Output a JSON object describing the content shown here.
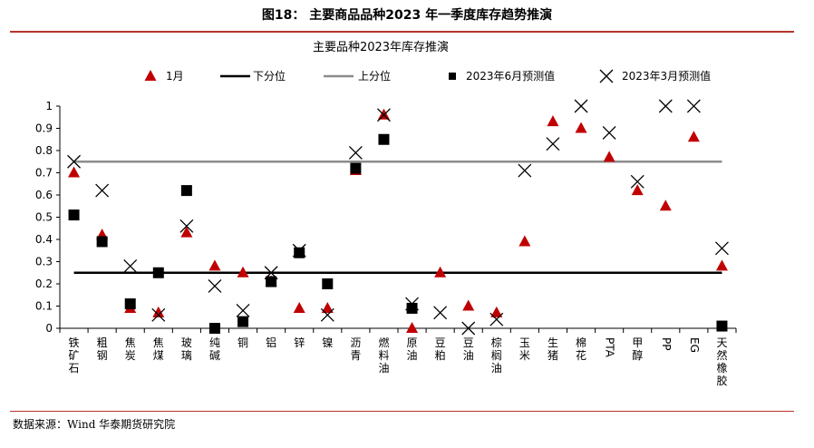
{
  "figure": {
    "title": "图18： 主要商品品种2023 年一季度库存趋势推演",
    "source": "数据来源：Wind 华泰期货研究院"
  },
  "colors": {
    "jan": "#c00000",
    "lower": "#000000",
    "upper": "#8c8c8c",
    "june": "#000000",
    "march": "#000000",
    "rule": "#b5352b"
  },
  "chart_data": {
    "type": "scatter",
    "title": "主要品种2023年库存推演",
    "categories": [
      "铁矿石",
      "粗钢",
      "焦炭",
      "焦煤",
      "玻璃",
      "纯碱",
      "铜",
      "铝",
      "锌",
      "镍",
      "沥青",
      "燃料油",
      "原油",
      "豆粕",
      "豆油",
      "棕榈油",
      "玉米",
      "生猪",
      "棉花",
      "PTA",
      "甲醇",
      "PP",
      "EG",
      "天然橡胶"
    ],
    "ylim": [
      0,
      1
    ],
    "yticks": [
      "0",
      "0.1",
      "0.2",
      "0.3",
      "0.4",
      "0.5",
      "0.6",
      "0.7",
      "0.8",
      "0.9",
      "1"
    ],
    "legend": [
      "1月",
      "下分位",
      "上分位",
      "2023年6月预测值",
      "2023年3月预测值"
    ],
    "legend_position": "top",
    "series": [
      {
        "name": "1月",
        "marker": "triangle",
        "values": [
          0.7,
          0.42,
          0.09,
          0.07,
          0.43,
          0.28,
          0.25,
          0.21,
          0.09,
          0.09,
          0.71,
          0.96,
          0.0,
          0.25,
          0.1,
          0.07,
          0.39,
          0.93,
          0.9,
          0.77,
          0.62,
          0.55,
          0.86,
          0.28
        ]
      },
      {
        "name": "2023年6月预测值",
        "marker": "square",
        "values": [
          0.51,
          0.39,
          0.11,
          0.25,
          0.62,
          0.0,
          0.03,
          0.21,
          0.34,
          0.2,
          0.72,
          0.85,
          0.09,
          null,
          null,
          null,
          null,
          null,
          null,
          null,
          null,
          null,
          null,
          0.01
        ]
      },
      {
        "name": "2023年3月预测值",
        "marker": "x",
        "values": [
          0.75,
          0.62,
          0.28,
          0.06,
          0.46,
          0.19,
          0.08,
          0.25,
          0.35,
          0.06,
          0.79,
          0.96,
          0.11,
          0.07,
          0.0,
          0.04,
          0.71,
          0.83,
          1.0,
          0.88,
          0.66,
          1.0,
          1.0,
          0.36
        ]
      },
      {
        "name": "下分位",
        "type": "hline",
        "value": 0.25
      },
      {
        "name": "上分位",
        "type": "hline",
        "value": 0.75
      }
    ]
  }
}
